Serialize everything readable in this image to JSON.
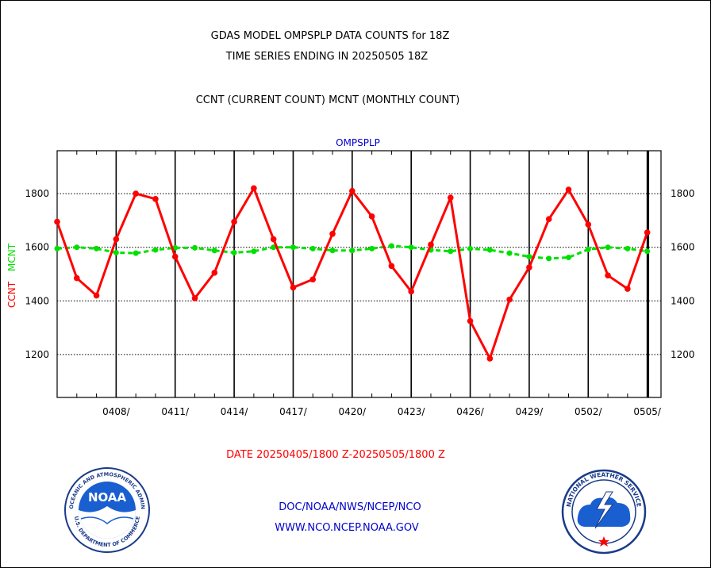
{
  "header": {
    "title_line1": "GDAS MODEL OMPSPLP DATA COUNTS for 18Z",
    "title_line2": "TIME SERIES ENDING IN 20250505 18Z",
    "subtitle": "CCNT (CURRENT COUNT) MCNT (MONTHLY COUNT)"
  },
  "footer": {
    "date_range": "DATE 20250405/1800 Z-20250505/1800 Z",
    "link1": "DOC/NOAA/NWS/NCEP/NCO",
    "link2": "WWW.NCO.NCEP.NOAA.GOV"
  },
  "logos": {
    "noaa_text": "NOAA",
    "noaa_ring": "NATIONAL OCEANIC AND ATMOSPHERIC ADMINISTRATION",
    "noaa_ring_bottom": "U.S. DEPARTMENT OF COMMERCE",
    "nws_ring": "NATIONAL WEATHER SERVICE"
  },
  "colors": {
    "ccnt": "#ff0000",
    "mcnt": "#00e000",
    "title_blue": "#0000cc",
    "date_red": "#ff0000"
  },
  "chart_data": {
    "type": "line",
    "title": "OMPSPLP",
    "ylabel_ccnt": "CCNT",
    "ylabel_mcnt": "MCNT",
    "ylim": [
      1040,
      1960
    ],
    "yticks": [
      1200,
      1400,
      1600,
      1800
    ],
    "ytick_labels": [
      "1200",
      "1400",
      "1600",
      "1800"
    ],
    "x_tick_labels": [
      "0408/",
      "0411/",
      "0414/",
      "0417/",
      "0420/",
      "0423/",
      "0426/",
      "0429/",
      "0502/",
      "0505/"
    ],
    "x_tick_days": [
      3,
      6,
      9,
      12,
      15,
      18,
      21,
      24,
      27,
      30
    ],
    "x_range_days": [
      0,
      30.7
    ],
    "x_start": "20250405/1800 Z",
    "grid": true,
    "series": [
      {
        "name": "CCNT",
        "color": "#ff0000",
        "values": [
          1695,
          1485,
          1420,
          1630,
          1800,
          1780,
          1565,
          1410,
          1505,
          1695,
          1820,
          1630,
          1450,
          1480,
          1650,
          1810,
          1715,
          1530,
          1435,
          1610,
          1785,
          1325,
          1185,
          1405,
          1525,
          1705,
          1815,
          1685,
          1495,
          1445,
          1655
        ]
      },
      {
        "name": "MCNT",
        "color": "#00e000",
        "values": [
          1595,
          1600,
          1595,
          1580,
          1578,
          1590,
          1598,
          1598,
          1588,
          1580,
          1585,
          1600,
          1600,
          1595,
          1588,
          1588,
          1595,
          1605,
          1600,
          1590,
          1585,
          1595,
          1590,
          1578,
          1565,
          1558,
          1562,
          1592,
          1600,
          1595,
          1585
        ]
      }
    ]
  }
}
